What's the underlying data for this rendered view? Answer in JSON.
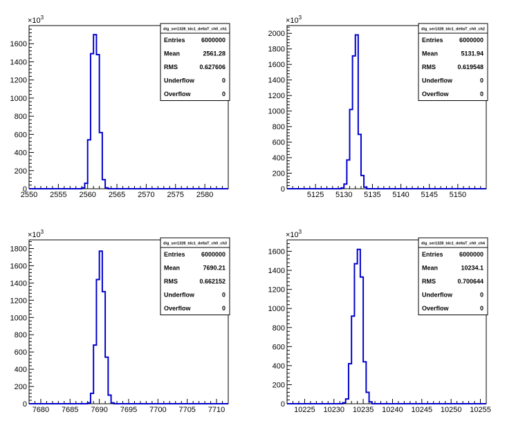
{
  "chart_data": [
    {
      "type": "bar",
      "stats_box": {
        "title": "dig_ser1328_tdc1_deltaT_ch0_ch1",
        "rows": [
          {
            "label": "Entries",
            "value": "6000000"
          },
          {
            "label": "Mean",
            "value": "2561.28"
          },
          {
            "label": "RMS",
            "value": "0.627606"
          },
          {
            "label": "Underflow",
            "value": "0"
          },
          {
            "label": "Overflow",
            "value": "0"
          }
        ]
      },
      "y_multiplier": "×10",
      "y_multiplier_exp": "3",
      "xlim": [
        2550,
        2584
      ],
      "ylim": [
        0,
        1800
      ],
      "xticks": [
        2550,
        2555,
        2560,
        2565,
        2570,
        2575,
        2580
      ],
      "yticks": [
        0,
        200,
        400,
        600,
        800,
        1000,
        1200,
        1400,
        1600
      ],
      "bin_width": 0.5,
      "bins": [
        {
          "x": 2559.0,
          "y": 10
        },
        {
          "x": 2559.5,
          "y": 60
        },
        {
          "x": 2560.0,
          "y": 540
        },
        {
          "x": 2560.5,
          "y": 1490
        },
        {
          "x": 2561.0,
          "y": 1700
        },
        {
          "x": 2561.5,
          "y": 1480
        },
        {
          "x": 2562.0,
          "y": 620
        },
        {
          "x": 2562.5,
          "y": 100
        },
        {
          "x": 2563.0,
          "y": 10
        }
      ]
    },
    {
      "type": "bar",
      "stats_box": {
        "title": "dig_ser1328_tdc1_deltaT_ch0_ch2",
        "rows": [
          {
            "label": "Entries",
            "value": "6000000"
          },
          {
            "label": "Mean",
            "value": "5131.94"
          },
          {
            "label": "RMS",
            "value": "0.619548"
          },
          {
            "label": "Underflow",
            "value": "0"
          },
          {
            "label": "Overflow",
            "value": "0"
          }
        ]
      },
      "y_multiplier": "×10",
      "y_multiplier_exp": "3",
      "xlim": [
        5120,
        5155
      ],
      "ylim": [
        0,
        2100
      ],
      "xticks": [
        5125,
        5130,
        5135,
        5140,
        5145,
        5150
      ],
      "yticks": [
        0,
        200,
        400,
        600,
        800,
        1000,
        1200,
        1400,
        1600,
        1800,
        2000
      ],
      "bin_width": 0.5,
      "bins": [
        {
          "x": 5129.5,
          "y": 10
        },
        {
          "x": 5130.0,
          "y": 60
        },
        {
          "x": 5130.5,
          "y": 370
        },
        {
          "x": 5131.0,
          "y": 1020
        },
        {
          "x": 5131.5,
          "y": 1710
        },
        {
          "x": 5132.0,
          "y": 1980
        },
        {
          "x": 5132.5,
          "y": 700
        },
        {
          "x": 5133.0,
          "y": 170
        },
        {
          "x": 5133.5,
          "y": 20
        }
      ]
    },
    {
      "type": "bar",
      "stats_box": {
        "title": "dig_ser1328_tdc1_deltaT_ch0_ch3",
        "rows": [
          {
            "label": "Entries",
            "value": "6000000"
          },
          {
            "label": "Mean",
            "value": "7690.21"
          },
          {
            "label": "RMS",
            "value": "0.662152"
          },
          {
            "label": "Underflow",
            "value": "0"
          },
          {
            "label": "Overflow",
            "value": "0"
          }
        ]
      },
      "y_multiplier": "×10",
      "y_multiplier_exp": "3",
      "xlim": [
        7678,
        7712
      ],
      "ylim": [
        0,
        1900
      ],
      "xticks": [
        7680,
        7685,
        7690,
        7695,
        7700,
        7705,
        7710
      ],
      "yticks": [
        0,
        200,
        400,
        600,
        800,
        1000,
        1200,
        1400,
        1600,
        1800
      ],
      "bin_width": 0.5,
      "bins": [
        {
          "x": 7688.0,
          "y": 10
        },
        {
          "x": 7688.5,
          "y": 120
        },
        {
          "x": 7689.0,
          "y": 680
        },
        {
          "x": 7689.5,
          "y": 1440
        },
        {
          "x": 7690.0,
          "y": 1770
        },
        {
          "x": 7690.5,
          "y": 1300
        },
        {
          "x": 7691.0,
          "y": 540
        },
        {
          "x": 7691.5,
          "y": 100
        },
        {
          "x": 7692.0,
          "y": 10
        }
      ]
    },
    {
      "type": "bar",
      "stats_box": {
        "title": "dig_ser1328_tdc1_deltaT_ch0_ch4",
        "rows": [
          {
            "label": "Entries",
            "value": "6000000"
          },
          {
            "label": "Mean",
            "value": "10234.1"
          },
          {
            "label": "RMS",
            "value": "0.700644"
          },
          {
            "label": "Underflow",
            "value": "0"
          },
          {
            "label": "Overflow",
            "value": "0"
          }
        ]
      },
      "y_multiplier": "×10",
      "y_multiplier_exp": "3",
      "xlim": [
        10222,
        10256
      ],
      "ylim": [
        0,
        1720
      ],
      "xticks": [
        10225,
        10230,
        10235,
        10240,
        10245,
        10250,
        10255
      ],
      "yticks": [
        0,
        200,
        400,
        600,
        800,
        1000,
        1200,
        1400,
        1600
      ],
      "bin_width": 0.5,
      "bins": [
        {
          "x": 10231.5,
          "y": 10
        },
        {
          "x": 10232.0,
          "y": 50
        },
        {
          "x": 10232.5,
          "y": 420
        },
        {
          "x": 10233.0,
          "y": 920
        },
        {
          "x": 10233.5,
          "y": 1470
        },
        {
          "x": 10234.0,
          "y": 1620
        },
        {
          "x": 10234.5,
          "y": 1330
        },
        {
          "x": 10235.0,
          "y": 440
        },
        {
          "x": 10235.5,
          "y": 120
        },
        {
          "x": 10236.0,
          "y": 20
        }
      ]
    }
  ],
  "colors": {
    "histogram_line": "#0000cc",
    "axis": "#000000",
    "background": "#ffffff"
  }
}
